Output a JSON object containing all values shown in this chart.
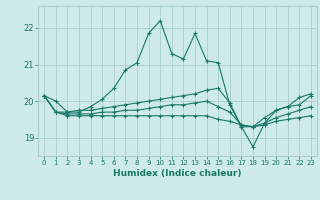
{
  "xlabel": "Humidex (Indice chaleur)",
  "background_color": "#ceeaea",
  "grid_color": "#aacece",
  "line_color": "#1a7868",
  "xlim": [
    -0.5,
    23.5
  ],
  "ylim": [
    18.5,
    22.6
  ],
  "yticks": [
    19,
    20,
    21,
    22
  ],
  "xticks": [
    0,
    1,
    2,
    3,
    4,
    5,
    6,
    7,
    8,
    9,
    10,
    11,
    12,
    13,
    14,
    15,
    16,
    17,
    18,
    19,
    20,
    21,
    22,
    23
  ],
  "series": [
    [
      20.15,
      20.0,
      19.7,
      19.7,
      19.85,
      20.05,
      20.35,
      20.85,
      21.05,
      21.85,
      22.2,
      21.3,
      21.15,
      21.85,
      21.1,
      21.05,
      19.9,
      19.3,
      18.75,
      19.4,
      19.75,
      19.85,
      20.1,
      20.2
    ],
    [
      20.15,
      19.7,
      19.7,
      19.75,
      19.75,
      19.8,
      19.85,
      19.9,
      19.95,
      20.0,
      20.05,
      20.1,
      20.15,
      20.2,
      20.3,
      20.35,
      19.95,
      19.3,
      19.3,
      19.55,
      19.75,
      19.85,
      19.9,
      20.15
    ],
    [
      20.15,
      19.7,
      19.65,
      19.65,
      19.65,
      19.7,
      19.7,
      19.75,
      19.75,
      19.8,
      19.85,
      19.9,
      19.9,
      19.95,
      20.0,
      19.85,
      19.7,
      19.35,
      19.3,
      19.4,
      19.55,
      19.65,
      19.75,
      19.85
    ],
    [
      20.15,
      19.7,
      19.6,
      19.6,
      19.6,
      19.6,
      19.6,
      19.6,
      19.6,
      19.6,
      19.6,
      19.6,
      19.6,
      19.6,
      19.6,
      19.5,
      19.45,
      19.35,
      19.3,
      19.35,
      19.45,
      19.5,
      19.55,
      19.6
    ]
  ]
}
